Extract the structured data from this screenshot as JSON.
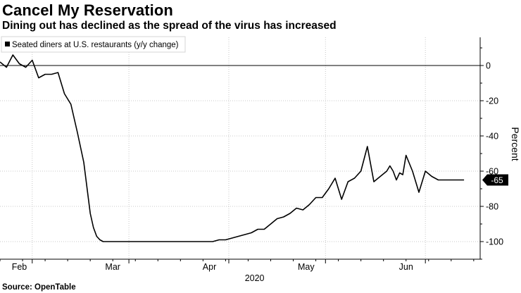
{
  "title": "Cancel My Reservation",
  "subtitle": "Dining out has declined as the spread of the virus has increased",
  "source": "Source: OpenTable",
  "chart_data": {
    "type": "line",
    "series": [
      {
        "name": "Seated diners at U.S. restaurants (y/y change)",
        "color": "#000000",
        "days": [
          0,
          2,
          4,
          6,
          8,
          10,
          12,
          14,
          16,
          18,
          20,
          22,
          24,
          26,
          28,
          29,
          30,
          31,
          32,
          33,
          34,
          35,
          36,
          38,
          40,
          42,
          44,
          46,
          48,
          50,
          52,
          54,
          56,
          58,
          60,
          62,
          64,
          66,
          68,
          70,
          72,
          74,
          76,
          78,
          80,
          82,
          84,
          86,
          88,
          90,
          92,
          94,
          96,
          98,
          100,
          102,
          104,
          106,
          108,
          110,
          112,
          114,
          116,
          118,
          120,
          121,
          122,
          123,
          124,
          125,
          126,
          128,
          130,
          132,
          134,
          136,
          138,
          140,
          141,
          142,
          143,
          144
        ],
        "values": [
          2,
          -1,
          6,
          1,
          -1,
          3,
          -7,
          -5,
          -5,
          -4,
          -16,
          -22,
          -38,
          -55,
          -84,
          -92,
          -97,
          -99,
          -100,
          -100,
          -100,
          -100,
          -100,
          -100,
          -100,
          -100,
          -100,
          -100,
          -100,
          -100,
          -100,
          -100,
          -100,
          -100,
          -100,
          -100,
          -100,
          -100,
          -99,
          -99,
          -98,
          -97,
          -96,
          -95,
          -93,
          -93,
          -90,
          -87,
          -86,
          -84,
          -81,
          -82,
          -79,
          -75,
          -75,
          -70,
          -64,
          -76,
          -66,
          -64,
          -60,
          -46,
          -66,
          -63,
          -60,
          -57,
          -60,
          -65,
          -61,
          -62,
          -51,
          -60,
          -72,
          -60,
          -63,
          -65,
          -65,
          -65,
          -65,
          -65,
          -65,
          -65
        ]
      }
    ],
    "last_value_label": "-65",
    "ylim": [
      -110,
      16
    ],
    "yticks": [
      0,
      -20,
      -40,
      -60,
      -80,
      -100
    ],
    "ylabel": "Percent",
    "xlabel": "2020",
    "xlim": [
      0,
      149
    ],
    "xticks": [
      {
        "label": "Feb",
        "day": 6
      },
      {
        "label": "Mar",
        "day": 35
      },
      {
        "label": "Apr",
        "day": 65
      },
      {
        "label": "May",
        "day": 95
      },
      {
        "label": "Jun",
        "day": 126
      }
    ],
    "month_boundaries": [
      10,
      40,
      71,
      101,
      132
    ],
    "reference_line": 0,
    "grid": true,
    "legend_position": "top-left"
  }
}
